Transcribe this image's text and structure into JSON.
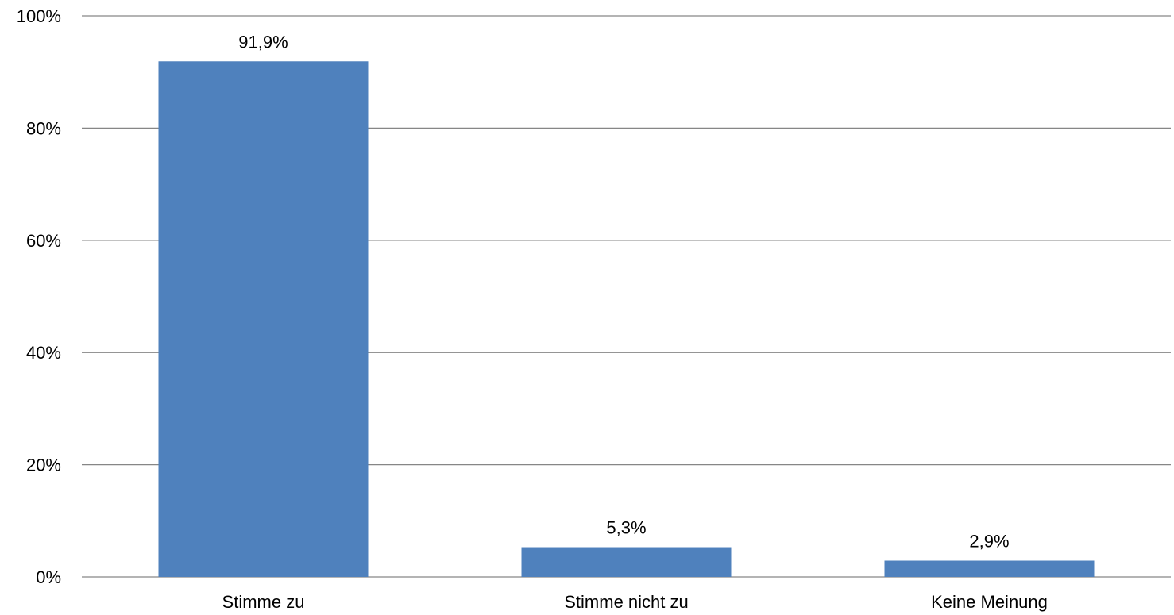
{
  "chart_data": {
    "type": "bar",
    "title": "",
    "xlabel": "",
    "ylabel": "",
    "categories": [
      "Stimme zu",
      "Stimme nicht zu",
      "Keine Meinung"
    ],
    "values": [
      91.9,
      5.3,
      2.9
    ],
    "data_labels": [
      "91,9%",
      "5,3%",
      "2,9%"
    ],
    "ylim": [
      0,
      100
    ],
    "yticks": [
      0,
      20,
      40,
      60,
      80,
      100
    ],
    "ytick_labels": [
      "0%",
      "20%",
      "40%",
      "60%",
      "80%",
      "100%"
    ],
    "grid": true,
    "legend": "none",
    "bar_color": "#4F81BD"
  }
}
